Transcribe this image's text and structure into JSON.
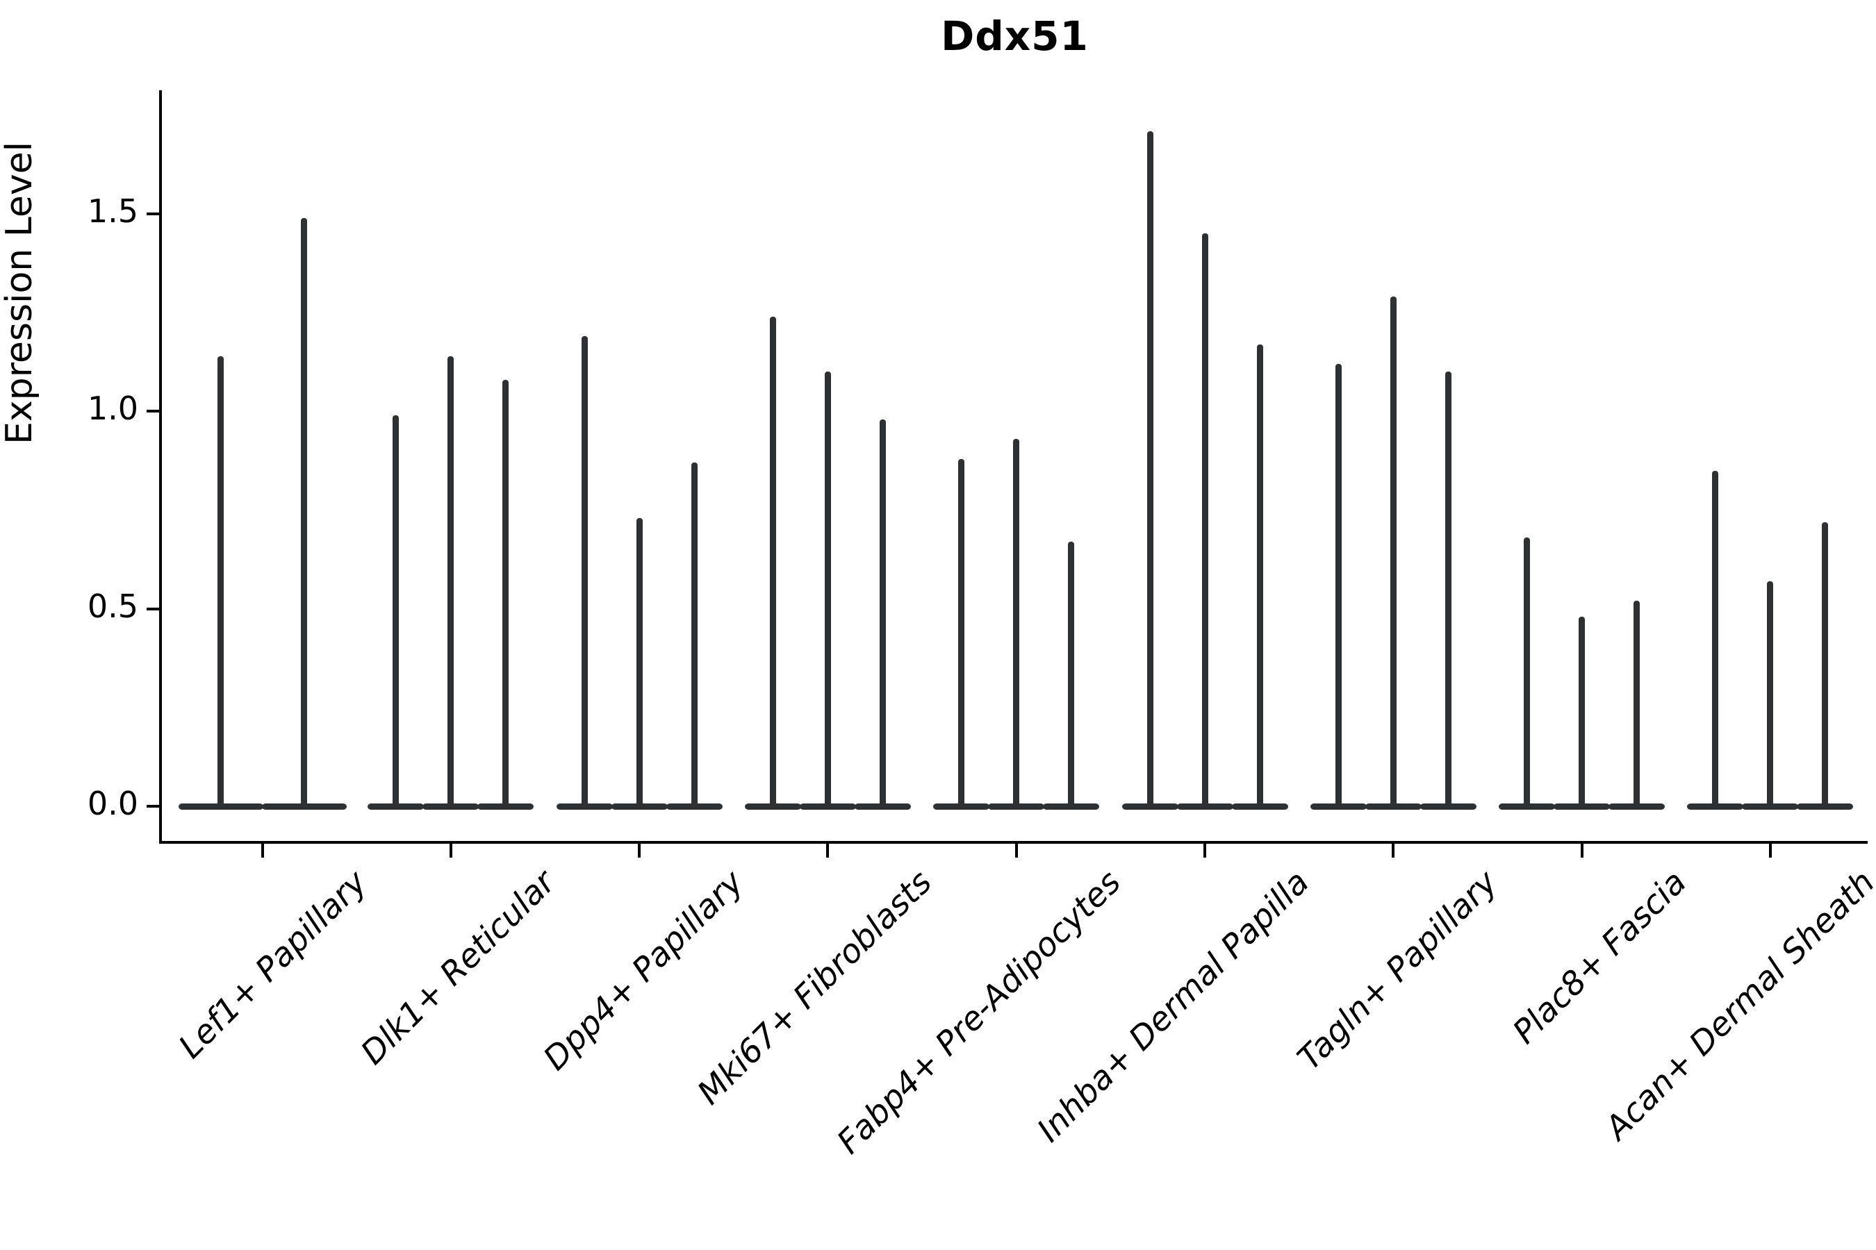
{
  "title": "Ddx51",
  "ylabel": "Expression Level",
  "colors": {
    "violin": "#2e3133",
    "axis": "#000000",
    "background": "#ffffff",
    "text": "#000000"
  },
  "chart_data": {
    "type": "violin",
    "title": "Ddx51",
    "xlabel": "",
    "ylabel": "Expression Level",
    "ylim": [
      -0.09,
      1.81
    ],
    "yticks": [
      {
        "value": 0.0,
        "label": "0.0"
      },
      {
        "value": 0.5,
        "label": "0.5"
      },
      {
        "value": 1.0,
        "label": "1.0"
      },
      {
        "value": 1.5,
        "label": "1.5"
      }
    ],
    "grid": false,
    "legend": "none",
    "description": "Violin plot of Ddx51 expression level per fibroblast subtype; each category contains narrow spike-shaped violins (mass concentrated at 0 with a thin spike up to the max expression value).",
    "categories": [
      "Lef1+ Papillary",
      "Dlk1+ Reticular",
      "Dpp4+ Papillary",
      "Mki67+ Fibroblasts",
      "Fabp4+ Pre-Adipocytes",
      "Inhba+ Dermal Papilla",
      "Tagln+ Papillary",
      "Plac8+ Fascia",
      "Acan+ Dermal Sheath"
    ],
    "groups": [
      {
        "label": "Lef1+ Papillary",
        "violin_max_values": [
          1.14,
          1.49
        ]
      },
      {
        "label": "Dlk1+ Reticular",
        "violin_max_values": [
          0.99,
          1.14,
          1.08
        ]
      },
      {
        "label": "Dpp4+ Papillary",
        "violin_max_values": [
          1.19,
          0.73,
          0.87
        ]
      },
      {
        "label": "Mki67+ Fibroblasts",
        "violin_max_values": [
          1.24,
          1.1,
          0.98
        ]
      },
      {
        "label": "Fabp4+ Pre-Adipocytes",
        "violin_max_values": [
          0.88,
          0.93,
          0.67
        ]
      },
      {
        "label": "Inhba+ Dermal Papilla",
        "violin_max_values": [
          1.71,
          1.45,
          1.17
        ]
      },
      {
        "label": "Tagln+ Papillary",
        "violin_max_values": [
          1.12,
          1.29,
          1.1
        ]
      },
      {
        "label": "Plac8+ Fascia",
        "violin_max_values": [
          0.68,
          0.48,
          0.52
        ]
      },
      {
        "label": "Acan+ Dermal Sheath",
        "violin_max_values": [
          0.85,
          0.57,
          0.72
        ]
      }
    ],
    "baseline_value": 0.0
  }
}
